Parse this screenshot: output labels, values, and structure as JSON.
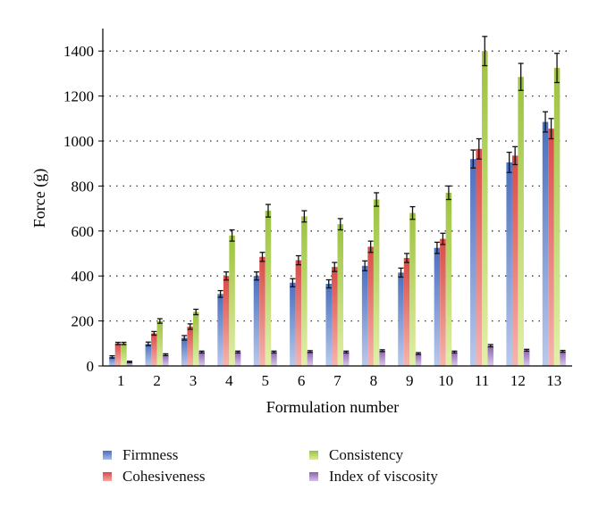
{
  "chart_data": {
    "type": "bar",
    "title": "",
    "xlabel": "Formulation number",
    "ylabel": "Force (g)",
    "ylim": [
      0,
      1500
    ],
    "yticks": [
      0,
      200,
      400,
      600,
      800,
      1000,
      1200,
      1400
    ],
    "grid": "horizontal-dotted",
    "legend_position": "bottom",
    "categories": [
      "1",
      "2",
      "3",
      "4",
      "5",
      "6",
      "7",
      "8",
      "9",
      "10",
      "11",
      "12",
      "13"
    ],
    "series": [
      {
        "name": "Firmness",
        "color": "#6e8fd0",
        "values": [
          40,
          98,
          125,
          320,
          400,
          370,
          365,
          445,
          415,
          525,
          920,
          905,
          1085
        ],
        "errors": [
          5,
          8,
          10,
          15,
          18,
          18,
          18,
          22,
          20,
          25,
          40,
          45,
          45
        ]
      },
      {
        "name": "Cohesiveness",
        "color": "#e8605c",
        "values": [
          100,
          145,
          175,
          400,
          485,
          470,
          440,
          530,
          480,
          565,
          965,
          935,
          1055
        ],
        "errors": [
          5,
          8,
          12,
          18,
          20,
          20,
          20,
          25,
          20,
          25,
          45,
          40,
          45
        ]
      },
      {
        "name": "Consistency",
        "color": "#b8d85a",
        "values": [
          100,
          200,
          240,
          580,
          690,
          665,
          630,
          740,
          680,
          770,
          1400,
          1285,
          1325
        ],
        "errors": [
          5,
          10,
          12,
          25,
          28,
          25,
          25,
          30,
          28,
          30,
          65,
          60,
          65
        ]
      },
      {
        "name": "Index of viscosity",
        "color": "#a681c4",
        "values": [
          18,
          50,
          62,
          62,
          62,
          64,
          62,
          68,
          55,
          62,
          90,
          70,
          65
        ],
        "errors": [
          3,
          4,
          4,
          4,
          4,
          4,
          4,
          4,
          4,
          4,
          5,
          4,
          4
        ]
      }
    ]
  }
}
